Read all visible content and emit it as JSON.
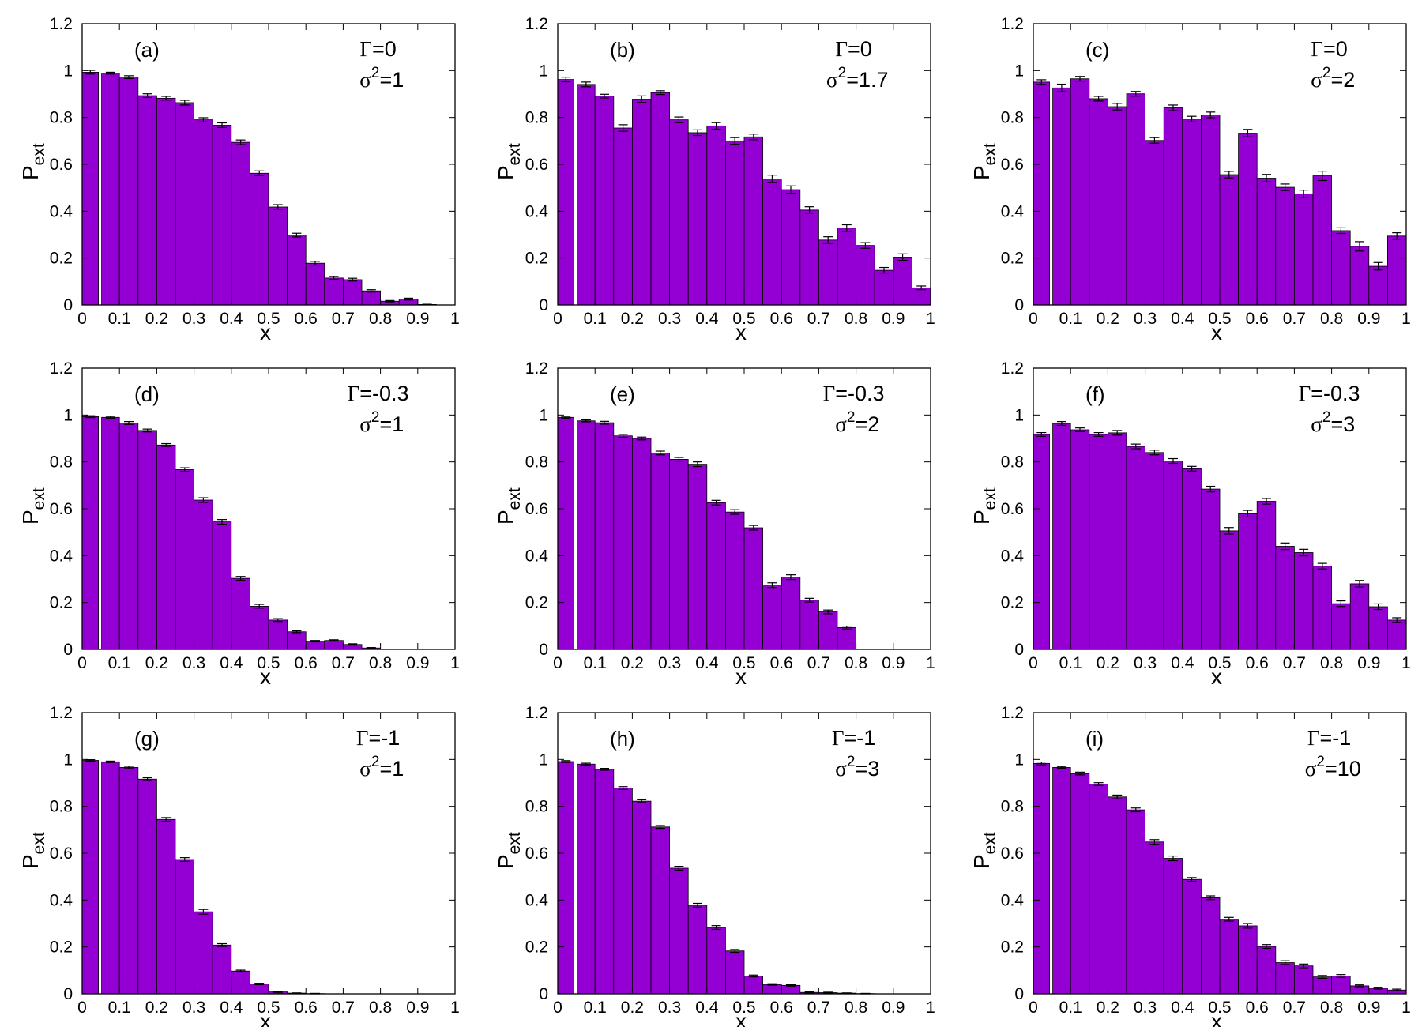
{
  "figure": {
    "x_axis_label": "x",
    "y_axis_label_main": "P",
    "y_axis_label_sub": "ext",
    "gamma_symbol": "Γ",
    "sigma_symbol": "σ",
    "sigma_exponent": "2"
  },
  "chart_data": [
    {
      "type": "bar",
      "label": "(a)",
      "gamma": "=0",
      "sigma2": "=1",
      "xlim": [
        0,
        1
      ],
      "ylim": [
        0,
        1.2
      ],
      "xticks": [
        "0",
        "0.1",
        "0.2",
        "0.3",
        "0.4",
        "0.5",
        "0.6",
        "0.7",
        "0.8",
        "0.9",
        "1"
      ],
      "yticks": [
        "0",
        "0.2",
        "0.4",
        "0.6",
        "0.8",
        "1",
        "1.2"
      ],
      "xlabel": "x",
      "ylabel": "Pext",
      "bin_width": 0.05,
      "values": [
        0.993,
        0.989,
        0.972,
        0.893,
        0.882,
        0.863,
        0.79,
        0.767,
        0.694,
        0.562,
        0.418,
        0.298,
        0.178,
        0.115,
        0.108,
        0.06,
        0.016,
        0.025,
        0.002,
        0.0
      ],
      "errors": [
        0.008,
        0.004,
        0.006,
        0.008,
        0.008,
        0.01,
        0.009,
        0.01,
        0.01,
        0.01,
        0.01,
        0.008,
        0.008,
        0.006,
        0.006,
        0.005,
        0.003,
        0.004,
        0.001,
        0.0
      ]
    },
    {
      "type": "bar",
      "label": "(b)",
      "gamma": "=0",
      "sigma2": "=1.7",
      "xlim": [
        0,
        1
      ],
      "ylim": [
        0,
        1.2
      ],
      "xticks": [
        "0",
        "0.1",
        "0.2",
        "0.3",
        "0.4",
        "0.5",
        "0.6",
        "0.7",
        "0.8",
        "0.9",
        "1"
      ],
      "yticks": [
        "0",
        "0.2",
        "0.4",
        "0.6",
        "0.8",
        "1",
        "1.2"
      ],
      "xlabel": "x",
      "ylabel": "Pext",
      "bin_width": 0.05,
      "values": [
        0.962,
        0.941,
        0.891,
        0.755,
        0.878,
        0.906,
        0.79,
        0.735,
        0.764,
        0.7,
        0.717,
        0.538,
        0.492,
        0.405,
        0.277,
        0.328,
        0.254,
        0.148,
        0.204,
        0.073
      ],
      "errors": [
        0.01,
        0.01,
        0.008,
        0.014,
        0.014,
        0.008,
        0.012,
        0.012,
        0.014,
        0.014,
        0.012,
        0.016,
        0.016,
        0.014,
        0.014,
        0.014,
        0.012,
        0.012,
        0.014,
        0.008
      ]
    },
    {
      "type": "bar",
      "label": "(c)",
      "gamma": "=0",
      "sigma2": "=2",
      "xlim": [
        0,
        1
      ],
      "ylim": [
        0,
        1.2
      ],
      "xticks": [
        "0",
        "0.1",
        "0.2",
        "0.3",
        "0.4",
        "0.5",
        "0.6",
        "0.7",
        "0.8",
        "0.9",
        "1"
      ],
      "yticks": [
        "0",
        "0.2",
        "0.4",
        "0.6",
        "0.8",
        "1",
        "1.2"
      ],
      "xlabel": "x",
      "ylabel": "Pext",
      "bin_width": 0.05,
      "values": [
        0.951,
        0.926,
        0.965,
        0.88,
        0.846,
        0.901,
        0.702,
        0.841,
        0.793,
        0.811,
        0.556,
        0.733,
        0.541,
        0.502,
        0.474,
        0.551,
        0.317,
        0.25,
        0.165,
        0.294
      ],
      "errors": [
        0.01,
        0.016,
        0.01,
        0.01,
        0.014,
        0.01,
        0.012,
        0.012,
        0.012,
        0.012,
        0.014,
        0.016,
        0.016,
        0.014,
        0.016,
        0.02,
        0.012,
        0.02,
        0.016,
        0.014
      ]
    },
    {
      "type": "bar",
      "label": "(d)",
      "gamma": "=-0.3",
      "sigma2": "=1",
      "xlim": [
        0,
        1
      ],
      "ylim": [
        0,
        1.2
      ],
      "xticks": [
        "0",
        "0.1",
        "0.2",
        "0.3",
        "0.4",
        "0.5",
        "0.6",
        "0.7",
        "0.8",
        "0.9",
        "1"
      ],
      "yticks": [
        "0",
        "0.2",
        "0.4",
        "0.6",
        "0.8",
        "1",
        "1.2"
      ],
      "xlabel": "x",
      "ylabel": "Pext",
      "bin_width": 0.05,
      "values": [
        0.993,
        0.99,
        0.966,
        0.934,
        0.872,
        0.767,
        0.637,
        0.544,
        0.303,
        0.184,
        0.125,
        0.075,
        0.035,
        0.038,
        0.021,
        0.006,
        0.0,
        0.0,
        0.0,
        0.0
      ],
      "errors": [
        0.004,
        0.004,
        0.006,
        0.006,
        0.006,
        0.008,
        0.01,
        0.01,
        0.008,
        0.008,
        0.006,
        0.004,
        0.003,
        0.003,
        0.003,
        0.002,
        0.0,
        0.0,
        0.0,
        0.0
      ]
    },
    {
      "type": "bar",
      "label": "(e)",
      "gamma": "=-0.3",
      "sigma2": "=2",
      "xlim": [
        0,
        1
      ],
      "ylim": [
        0,
        1.2
      ],
      "xticks": [
        "0",
        "0.1",
        "0.2",
        "0.3",
        "0.4",
        "0.5",
        "0.6",
        "0.7",
        "0.8",
        "0.9",
        "1"
      ],
      "yticks": [
        "0",
        "0.2",
        "0.4",
        "0.6",
        "0.8",
        "1",
        "1.2"
      ],
      "xlabel": "x",
      "ylabel": "Pext",
      "bin_width": 0.05,
      "values": [
        0.99,
        0.975,
        0.967,
        0.911,
        0.9,
        0.838,
        0.811,
        0.79,
        0.626,
        0.586,
        0.519,
        0.274,
        0.308,
        0.21,
        0.16,
        0.093,
        0.0,
        0.0,
        0.0,
        0.0
      ],
      "errors": [
        0.004,
        0.004,
        0.006,
        0.006,
        0.006,
        0.008,
        0.008,
        0.01,
        0.01,
        0.01,
        0.01,
        0.01,
        0.01,
        0.008,
        0.008,
        0.006,
        0.0,
        0.0,
        0.0,
        0.0
      ]
    },
    {
      "type": "bar",
      "label": "(f)",
      "gamma": "=-0.3",
      "sigma2": "=3",
      "xlim": [
        0,
        1
      ],
      "ylim": [
        0,
        1.2
      ],
      "xticks": [
        "0",
        "0.1",
        "0.2",
        "0.3",
        "0.4",
        "0.5",
        "0.6",
        "0.7",
        "0.8",
        "0.9",
        "1"
      ],
      "yticks": [
        "0",
        "0.2",
        "0.4",
        "0.6",
        "0.8",
        "1",
        "1.2"
      ],
      "xlabel": "x",
      "ylabel": "Pext",
      "bin_width": 0.05,
      "values": [
        0.917,
        0.964,
        0.937,
        0.917,
        0.924,
        0.866,
        0.84,
        0.804,
        0.771,
        0.684,
        0.506,
        0.579,
        0.632,
        0.44,
        0.413,
        0.355,
        0.195,
        0.28,
        0.182,
        0.125
      ],
      "errors": [
        0.008,
        0.008,
        0.008,
        0.008,
        0.01,
        0.01,
        0.01,
        0.01,
        0.01,
        0.012,
        0.014,
        0.014,
        0.012,
        0.014,
        0.014,
        0.012,
        0.012,
        0.014,
        0.012,
        0.01
      ]
    },
    {
      "type": "bar",
      "label": "(g)",
      "gamma": "=-1",
      "sigma2": "=1",
      "xlim": [
        0,
        1
      ],
      "ylim": [
        0,
        1.2
      ],
      "xticks": [
        "0",
        "0.1",
        "0.2",
        "0.3",
        "0.4",
        "0.5",
        "0.6",
        "0.7",
        "0.8",
        "0.9",
        "1"
      ],
      "yticks": [
        "0",
        "0.2",
        "0.4",
        "0.6",
        "0.8",
        "1",
        "1.2"
      ],
      "xlabel": "x",
      "ylabel": "Pext",
      "bin_width": 0.05,
      "values": [
        0.996,
        0.99,
        0.966,
        0.916,
        0.744,
        0.573,
        0.35,
        0.208,
        0.097,
        0.042,
        0.008,
        0.003,
        0.001,
        0.0,
        0.0,
        0.0,
        0.0,
        0.0,
        0.0,
        0.0
      ],
      "errors": [
        0.003,
        0.003,
        0.005,
        0.006,
        0.008,
        0.008,
        0.01,
        0.006,
        0.004,
        0.003,
        0.002,
        0.001,
        0.001,
        0.0,
        0.0,
        0.0,
        0.0,
        0.0,
        0.0,
        0.0
      ]
    },
    {
      "type": "bar",
      "label": "(h)",
      "gamma": "=-1",
      "sigma2": "=3",
      "xlim": [
        0,
        1
      ],
      "ylim": [
        0,
        1.2
      ],
      "xticks": [
        "0",
        "0.1",
        "0.2",
        "0.3",
        "0.4",
        "0.5",
        "0.6",
        "0.7",
        "0.8",
        "0.9",
        "1"
      ],
      "yticks": [
        "0",
        "0.2",
        "0.4",
        "0.6",
        "0.8",
        "1",
        "1.2"
      ],
      "xlabel": "x",
      "ylabel": "Pext",
      "bin_width": 0.05,
      "values": [
        0.991,
        0.98,
        0.958,
        0.878,
        0.822,
        0.712,
        0.536,
        0.378,
        0.283,
        0.183,
        0.076,
        0.04,
        0.036,
        0.006,
        0.005,
        0.003,
        0.001,
        0.0,
        0.0,
        0.0
      ],
      "errors": [
        0.004,
        0.004,
        0.004,
        0.006,
        0.006,
        0.006,
        0.008,
        0.008,
        0.008,
        0.006,
        0.004,
        0.003,
        0.003,
        0.002,
        0.002,
        0.001,
        0.001,
        0.0,
        0.0,
        0.0
      ]
    },
    {
      "type": "bar",
      "label": "(i)",
      "gamma": "=-1",
      "sigma2": "=10",
      "xlim": [
        0,
        1
      ],
      "ylim": [
        0,
        1.2
      ],
      "xticks": [
        "0",
        "0.1",
        "0.2",
        "0.3",
        "0.4",
        "0.5",
        "0.6",
        "0.7",
        "0.8",
        "0.9",
        "1"
      ],
      "yticks": [
        "0",
        "0.2",
        "0.4",
        "0.6",
        "0.8",
        "1",
        "1.2"
      ],
      "xlabel": "x",
      "ylabel": "Pext",
      "bin_width": 0.05,
      "values": [
        0.983,
        0.966,
        0.94,
        0.895,
        0.84,
        0.785,
        0.648,
        0.578,
        0.488,
        0.41,
        0.318,
        0.29,
        0.202,
        0.133,
        0.119,
        0.072,
        0.076,
        0.034,
        0.024,
        0.016
      ],
      "errors": [
        0.006,
        0.004,
        0.006,
        0.006,
        0.008,
        0.008,
        0.01,
        0.01,
        0.008,
        0.008,
        0.008,
        0.01,
        0.008,
        0.008,
        0.008,
        0.006,
        0.006,
        0.004,
        0.004,
        0.004
      ]
    }
  ]
}
